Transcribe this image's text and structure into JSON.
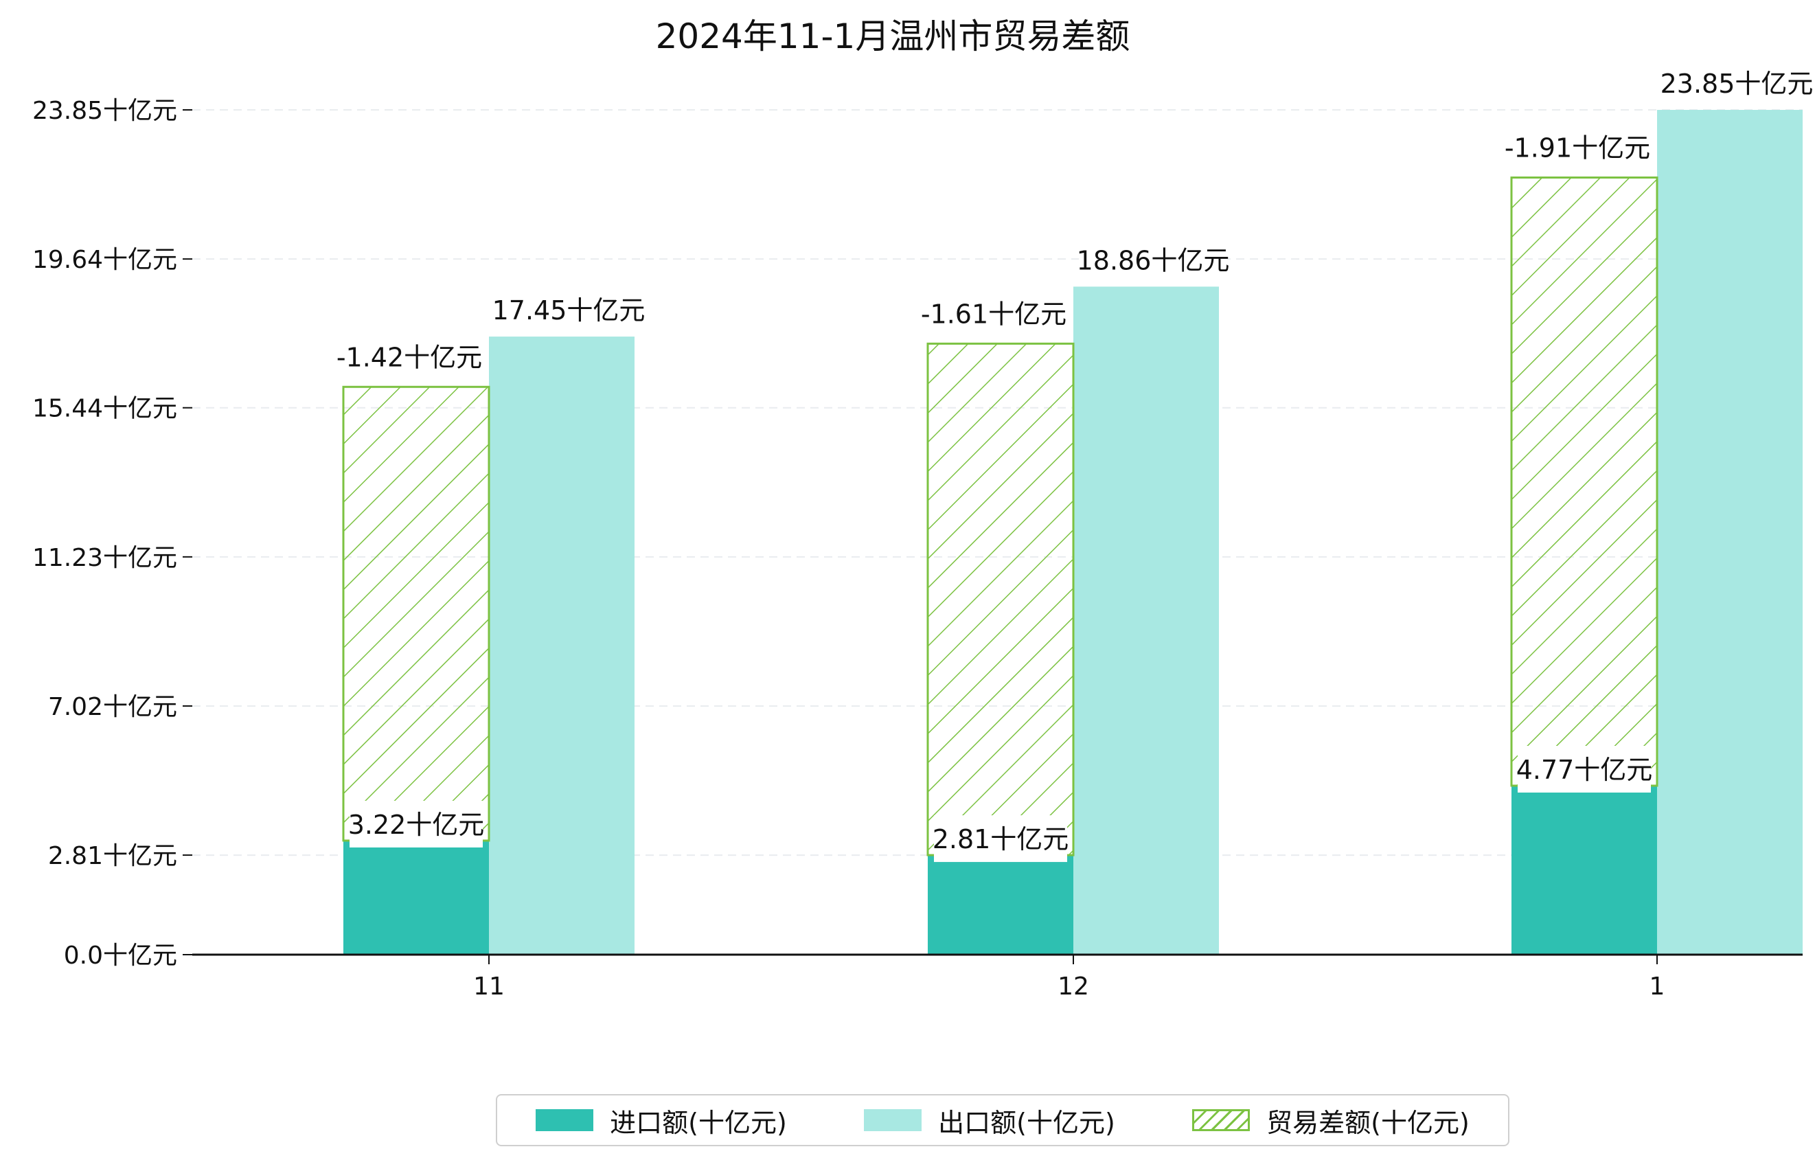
{
  "chart_data": {
    "type": "bar",
    "title": "2024年11-1月温州市贸易差额",
    "categories": [
      "11",
      "12",
      "1"
    ],
    "series": [
      {
        "name": "进口额(十亿元)",
        "values": [
          3.22,
          2.81,
          4.77
        ],
        "labels": [
          "3.22十亿元",
          "2.81十亿元",
          "4.77十亿元"
        ],
        "color": "#2ec0b1"
      },
      {
        "name": "出口额(十亿元)",
        "values": [
          17.45,
          18.86,
          23.85
        ],
        "labels": [
          "17.45十亿元",
          "18.86十亿元",
          "23.85十亿元"
        ],
        "color": "#a8e8e2"
      },
      {
        "name": "贸易差额(十亿元)",
        "values": [
          -1.42,
          -1.61,
          -1.91
        ],
        "labels": [
          "-1.42十亿元",
          "-1.61十亿元",
          "-1.91十亿元"
        ],
        "color": "#7cc242",
        "hatch": "diagonal"
      }
    ],
    "yticks": [
      "0.0十亿元",
      "2.81十亿元",
      "7.02十亿元",
      "11.23十亿元",
      "15.44十亿元",
      "19.64十亿元",
      "23.85十亿元"
    ],
    "ytick_values": [
      0,
      2.81,
      7.02,
      11.23,
      15.44,
      19.64,
      23.85
    ],
    "ylim": [
      0,
      23.85
    ],
    "xlabel": "",
    "ylabel": "",
    "grid": "horizontal-dashed",
    "legend_position": "bottom-center"
  }
}
